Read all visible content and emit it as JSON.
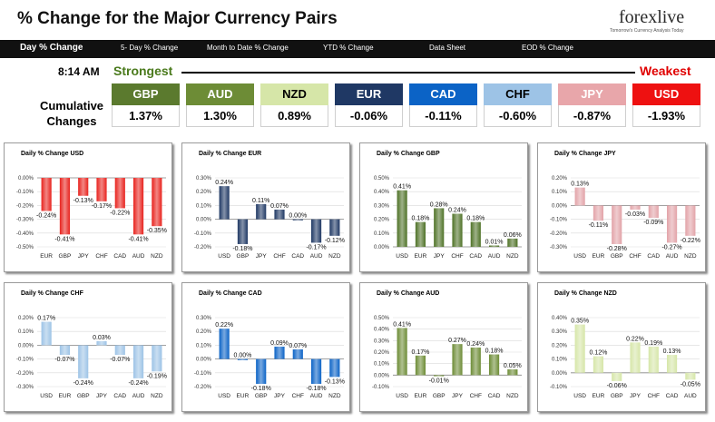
{
  "header": {
    "title": "% Change for the Major Currency Pairs"
  },
  "logo": {
    "text": "forexlive",
    "tagline": "Tomorrow's Currency Analysis Today"
  },
  "nav": [
    {
      "label": "Day % Change",
      "active": true
    },
    {
      "label": "5- Day % Change",
      "active": false
    },
    {
      "label": "Month to Date % Change",
      "active": false
    },
    {
      "label": "YTD % Change",
      "active": false
    },
    {
      "label": "Data Sheet",
      "active": false
    },
    {
      "label": "EOD % Change",
      "active": false
    }
  ],
  "summary": {
    "time": "8:14 AM",
    "strongest": "Strongest",
    "weakest": "Weakest",
    "cumulative_label": "Cumulative Changes",
    "currencies": [
      {
        "code": "GBP",
        "value": "1.37%",
        "bg": "#5b7a2e",
        "fg": "#ffffff"
      },
      {
        "code": "AUD",
        "value": "1.30%",
        "bg": "#6d8c36",
        "fg": "#ffffff"
      },
      {
        "code": "NZD",
        "value": "0.89%",
        "bg": "#d6e6a8",
        "fg": "#000000"
      },
      {
        "code": "EUR",
        "value": "-0.06%",
        "bg": "#1f3864",
        "fg": "#ffffff"
      },
      {
        "code": "CAD",
        "value": "-0.11%",
        "bg": "#0b63c6",
        "fg": "#ffffff"
      },
      {
        "code": "CHF",
        "value": "-0.60%",
        "bg": "#9dc3e6",
        "fg": "#000000"
      },
      {
        "code": "JPY",
        "value": "-0.87%",
        "bg": "#e8a6aa",
        "fg": "#ffffff"
      },
      {
        "code": "USD",
        "value": "-1.93%",
        "bg": "#ee1111",
        "fg": "#ffffff"
      }
    ]
  },
  "chart_data": [
    {
      "type": "bar",
      "title": "Daily % Change USD",
      "categories": [
        "EUR",
        "GBP",
        "JPY",
        "CHF",
        "CAD",
        "AUD",
        "NZD"
      ],
      "values": [
        -0.24,
        -0.41,
        -0.13,
        -0.17,
        -0.22,
        -0.41,
        -0.35
      ],
      "labels": [
        "-0.24%",
        "-0.41%",
        "-0.13%",
        "-0.17%",
        "-0.22%",
        "-0.41%",
        "-0.35%"
      ],
      "yticks": [
        "0.00%",
        "-0.10%",
        "-0.20%",
        "-0.30%",
        "-0.40%",
        "-0.50%"
      ],
      "ylim": [
        -0.5,
        0
      ],
      "color": "#e8231e"
    },
    {
      "type": "bar",
      "title": "Daily % Change EUR",
      "categories": [
        "USD",
        "GBP",
        "JPY",
        "CHF",
        "CAD",
        "AUD",
        "NZD"
      ],
      "values": [
        0.24,
        -0.18,
        0.11,
        0.07,
        0.0,
        -0.17,
        -0.12
      ],
      "labels": [
        "0.24%",
        "-0.18%",
        "0.11%",
        "0.07%",
        "0.00%",
        "-0.17%",
        "-0.12%"
      ],
      "yticks": [
        "0.30%",
        "0.20%",
        "0.10%",
        "0.00%",
        "-0.10%",
        "-0.20%"
      ],
      "ylim": [
        -0.2,
        0.3
      ],
      "color": "#1f3864"
    },
    {
      "type": "bar",
      "title": "Daily % Change GBP",
      "categories": [
        "USD",
        "EUR",
        "JPY",
        "CHF",
        "CAD",
        "AUD",
        "NZD"
      ],
      "values": [
        0.41,
        0.18,
        0.28,
        0.24,
        0.18,
        0.01,
        0.06
      ],
      "labels": [
        "0.41%",
        "0.18%",
        "0.28%",
        "0.24%",
        "0.18%",
        "0.01%",
        "0.06%"
      ],
      "yticks": [
        "0.50%",
        "0.40%",
        "0.30%",
        "0.20%",
        "0.10%",
        "0.00%"
      ],
      "ylim": [
        0,
        0.5
      ],
      "color": "#4f7227"
    },
    {
      "type": "bar",
      "title": "Daily % Change JPY",
      "categories": [
        "USD",
        "EUR",
        "GBP",
        "CHF",
        "CAD",
        "AUD",
        "NZD"
      ],
      "values": [
        0.13,
        -0.11,
        -0.28,
        -0.03,
        -0.09,
        -0.27,
        -0.22
      ],
      "labels": [
        "0.13%",
        "-0.11%",
        "-0.28%",
        "-0.03%",
        "-0.09%",
        "-0.27%",
        "-0.22%"
      ],
      "yticks": [
        "0.20%",
        "0.10%",
        "0.00%",
        "-0.10%",
        "-0.20%",
        "-0.30%"
      ],
      "ylim": [
        -0.3,
        0.2
      ],
      "color": "#e2a3a8"
    },
    {
      "type": "bar",
      "title": "Daily % Change CHF",
      "categories": [
        "USD",
        "EUR",
        "GBP",
        "JPY",
        "CAD",
        "AUD",
        "NZD"
      ],
      "values": [
        0.17,
        -0.07,
        -0.24,
        0.03,
        -0.07,
        -0.24,
        -0.19
      ],
      "labels": [
        "0.17%",
        "-0.07%",
        "-0.24%",
        "0.03%",
        "-0.07%",
        "-0.24%",
        "-0.19%"
      ],
      "yticks": [
        "0.20%",
        "0.10%",
        "0.00%",
        "-0.10%",
        "-0.20%",
        "-0.30%"
      ],
      "ylim": [
        -0.3,
        0.2
      ],
      "color": "#9dc3e6"
    },
    {
      "type": "bar",
      "title": "Daily % Change CAD",
      "categories": [
        "USD",
        "EUR",
        "GBP",
        "JPY",
        "CHF",
        "AUD",
        "NZD"
      ],
      "values": [
        0.22,
        0.0,
        -0.18,
        0.09,
        0.07,
        -0.18,
        -0.13
      ],
      "labels": [
        "0.22%",
        "0.00%",
        "-0.18%",
        "0.09%",
        "0.07%",
        "-0.18%",
        "-0.13%"
      ],
      "yticks": [
        "0.30%",
        "0.20%",
        "0.10%",
        "0.00%",
        "-0.10%",
        "-0.20%"
      ],
      "ylim": [
        -0.2,
        0.3
      ],
      "color": "#0b63c6"
    },
    {
      "type": "bar",
      "title": "Daily % Change AUD",
      "categories": [
        "USD",
        "EUR",
        "GBP",
        "JPY",
        "CHF",
        "CAD",
        "NZD"
      ],
      "values": [
        0.41,
        0.17,
        -0.01,
        0.27,
        0.24,
        0.18,
        0.05
      ],
      "labels": [
        "0.41%",
        "0.17%",
        "-0.01%",
        "0.27%",
        "0.24%",
        "0.18%",
        "0.05%"
      ],
      "yticks": [
        "0.50%",
        "0.40%",
        "0.30%",
        "0.20%",
        "0.10%",
        "0.00%",
        "-0.10%"
      ],
      "ylim": [
        -0.1,
        0.5
      ],
      "color": "#6d8c36"
    },
    {
      "type": "bar",
      "title": "Daily % Change NZD",
      "categories": [
        "USD",
        "EUR",
        "GBP",
        "JPY",
        "CHF",
        "CAD",
        "AUD"
      ],
      "values": [
        0.35,
        0.12,
        -0.06,
        0.22,
        0.19,
        0.13,
        -0.05
      ],
      "labels": [
        "0.35%",
        "0.12%",
        "-0.06%",
        "0.22%",
        "0.19%",
        "0.13%",
        "-0.05%"
      ],
      "yticks": [
        "0.40%",
        "0.30%",
        "0.20%",
        "0.10%",
        "0.00%",
        "-0.10%"
      ],
      "ylim": [
        -0.1,
        0.4
      ],
      "color": "#d6e6a8"
    }
  ]
}
